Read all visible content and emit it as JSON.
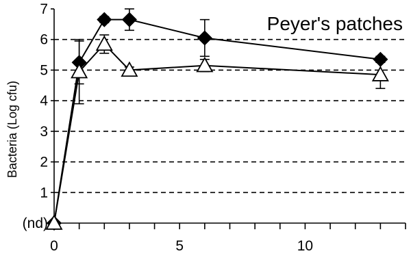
{
  "chart_data": {
    "type": "line",
    "title": "Peyer's patches",
    "xlabel": "",
    "ylabel": "Bacteria (Log cfu)",
    "xlim": [
      0,
      14
    ],
    "ylim": [
      0,
      7
    ],
    "x_ticks": [
      0,
      5,
      10
    ],
    "y_tick_labels": [
      "(nd)",
      "1",
      "2",
      "3",
      "4",
      "5",
      "6",
      "7"
    ],
    "grid": "horizontal dashed",
    "series": [
      {
        "marker": "diamond",
        "marker_fill": "#000000",
        "points": [
          {
            "x": 0,
            "y": 0
          },
          {
            "x": 1,
            "y": 5.25,
            "err": 0.7
          },
          {
            "x": 2,
            "y": 6.65,
            "err": 0.1
          },
          {
            "x": 3,
            "y": 6.65,
            "err": 0.35
          },
          {
            "x": 6,
            "y": 6.05,
            "err": 0.6
          },
          {
            "x": 13,
            "y": 5.35,
            "err": 0.1
          }
        ]
      },
      {
        "marker": "triangle",
        "marker_fill": "#ffffff",
        "points": [
          {
            "x": 0,
            "y": 0
          },
          {
            "x": 1,
            "y": 4.95,
            "err": 1.05
          },
          {
            "x": 2,
            "y": 5.85,
            "err": 0.3
          },
          {
            "x": 3,
            "y": 5.0,
            "err": 0.1
          },
          {
            "x": 6,
            "y": 5.15,
            "err": 0.2
          },
          {
            "x": 13,
            "y": 4.85,
            "err": 0.45
          }
        ]
      }
    ]
  }
}
